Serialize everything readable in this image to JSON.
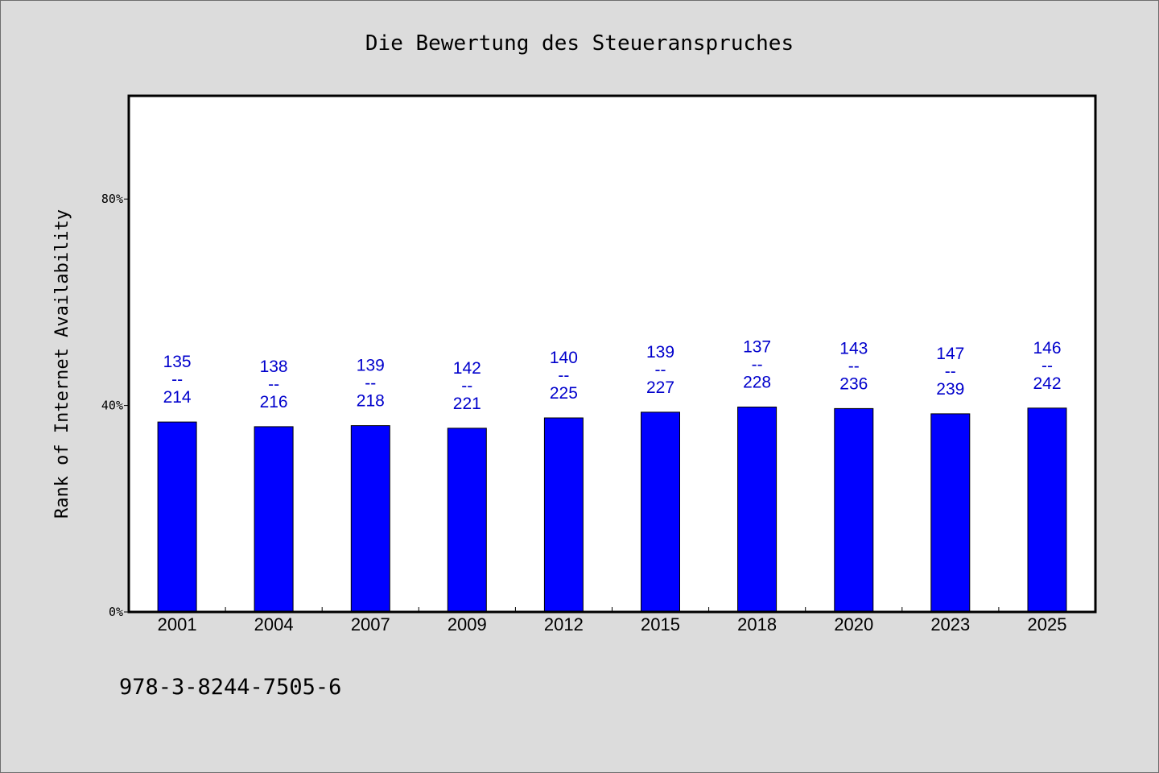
{
  "chart_data": {
    "type": "bar",
    "title": "Die Bewertung des Steueranspruches",
    "ylabel": "Rank of Internet Availability",
    "xlabel": "",
    "ylim": [
      0,
      100
    ],
    "yticks": [
      0,
      40,
      80
    ],
    "ytick_labels": [
      "0%",
      "40%",
      "80%"
    ],
    "categories": [
      "2001",
      "2004",
      "2007",
      "2009",
      "2012",
      "2015",
      "2018",
      "2020",
      "2023",
      "2025"
    ],
    "values": [
      36.8,
      35.9,
      36.1,
      35.6,
      37.6,
      38.7,
      39.7,
      39.4,
      38.4,
      39.5
    ],
    "bar_labels": [
      [
        "135",
        "--",
        "214"
      ],
      [
        "138",
        "--",
        "216"
      ],
      [
        "139",
        "--",
        "218"
      ],
      [
        "142",
        "--",
        "221"
      ],
      [
        "140",
        "--",
        "225"
      ],
      [
        "139",
        "--",
        "227"
      ],
      [
        "137",
        "--",
        "228"
      ],
      [
        "143",
        "--",
        "236"
      ],
      [
        "147",
        "--",
        "239"
      ],
      [
        "146",
        "--",
        "242"
      ]
    ],
    "grid": false,
    "colors": {
      "bar": "#0000ff",
      "label": "#0000cc",
      "plot_background": "#ffffff",
      "figure_background": "#dcdcdc"
    }
  },
  "footer": {
    "isbn": "978-3-8244-7505-6"
  }
}
